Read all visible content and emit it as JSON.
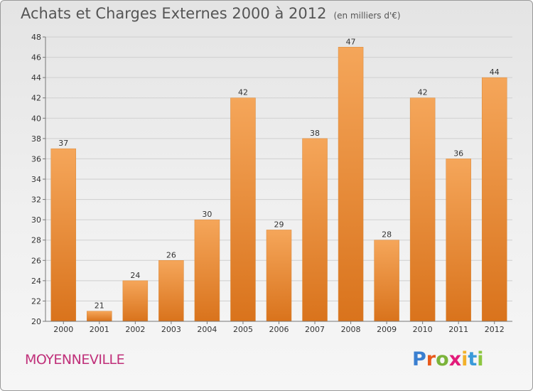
{
  "header": {
    "title": "Achats et Charges Externes 2000 à 2012",
    "subtitle": "(en milliers d'€)"
  },
  "footer": {
    "commune": "MOYENNEVILLE",
    "logo_text": "Proxiti",
    "logo_colors": [
      "#3a7fd0",
      "#e85a1c",
      "#7bb33a",
      "#e21b7a",
      "#f2b02a",
      "#3a9ad9",
      "#8cc63f"
    ]
  },
  "chart_data": {
    "type": "bar",
    "categories": [
      "2000",
      "2001",
      "2002",
      "2003",
      "2004",
      "2005",
      "2006",
      "2007",
      "2008",
      "2009",
      "2010",
      "2011",
      "2012"
    ],
    "values": [
      37,
      21,
      24,
      26,
      30,
      42,
      29,
      38,
      47,
      28,
      42,
      36,
      44
    ],
    "ylim": [
      20,
      48
    ],
    "yticks": [
      20,
      22,
      24,
      26,
      28,
      30,
      32,
      34,
      36,
      38,
      40,
      42,
      44,
      46,
      48
    ],
    "grid": true,
    "bar_color_top": "#f5a65a",
    "bar_color_bottom": "#d9731c"
  }
}
